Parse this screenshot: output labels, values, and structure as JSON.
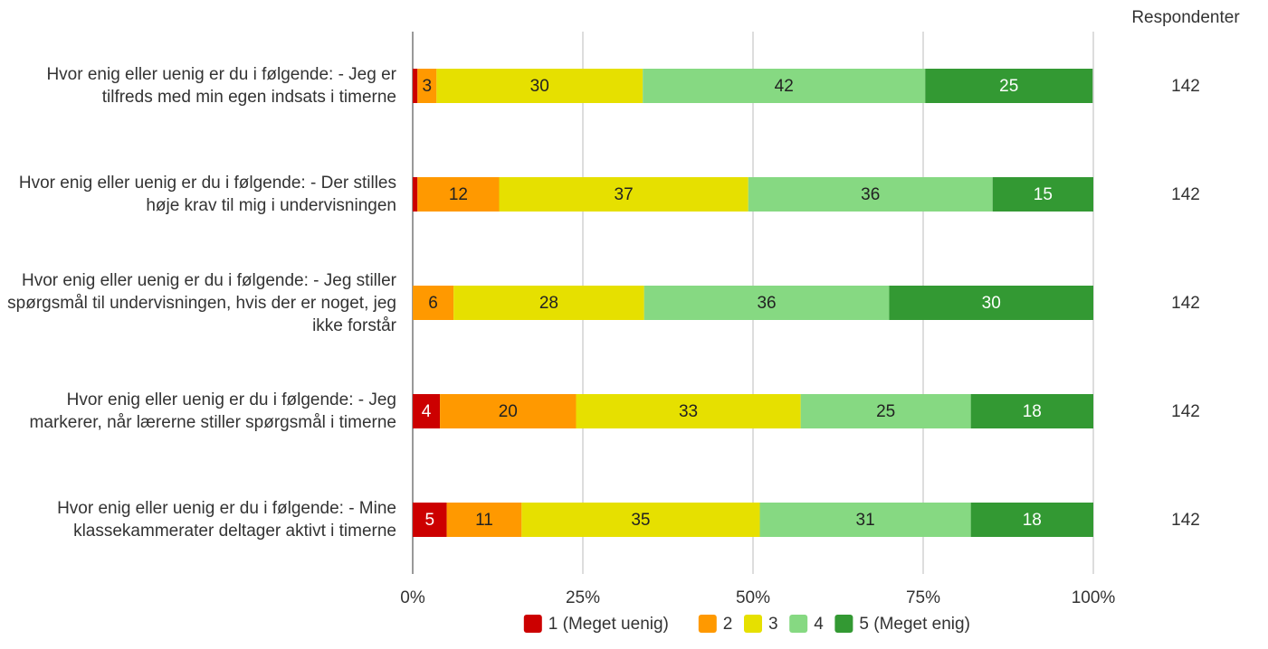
{
  "chart_data": {
    "type": "stacked_bar_horizontal",
    "categories": [
      "Hvor enig eller uenig er du i følgende: - Jeg er tilfreds med min egen indsats i timerne",
      "Hvor enig eller uenig er du i følgende: - Der stilles høje krav til mig i undervisningen",
      "Hvor enig eller uenig er du i følgende: - Jeg stiller spørgsmål til undervisningen, hvis der er noget, jeg ikke forstår",
      "Hvor enig eller uenig er du i følgende: - Jeg markerer, når lærerne stiller spørgsmål i timerne",
      "Hvor enig eller uenig er du i følgende: - Mine klassekammerater deltager aktivt i timerne"
    ],
    "series": [
      {
        "name": "1 (Meget uenig)",
        "color": "#cc0000",
        "label_color": "#ffffff",
        "values": [
          0.7,
          0.7,
          0,
          4,
          5
        ],
        "value_labels": [
          null,
          null,
          null,
          "4",
          "5"
        ]
      },
      {
        "name": "2",
        "color": "#ff9900",
        "label_color": "#222222",
        "values": [
          2.8,
          12.0,
          6,
          20,
          11
        ],
        "value_labels": [
          "3",
          "12",
          "6",
          "20",
          "11"
        ]
      },
      {
        "name": "3",
        "color": "#e6e000",
        "label_color": "#222222",
        "values": [
          30.3,
          36.6,
          28,
          33,
          35
        ],
        "value_labels": [
          "30",
          "37",
          "28",
          "33",
          "35"
        ]
      },
      {
        "name": "4",
        "color": "#86d982",
        "label_color": "#222222",
        "values": [
          41.5,
          35.9,
          36,
          25,
          31
        ],
        "value_labels": [
          "42",
          "36",
          "36",
          "25",
          "31"
        ]
      },
      {
        "name": "5 (Meget enig)",
        "color": "#339933",
        "label_color": "#ffffff",
        "values": [
          24.6,
          14.8,
          30,
          18,
          18
        ],
        "value_labels": [
          "25",
          "15",
          "30",
          "18",
          "18"
        ]
      }
    ],
    "xlim": [
      0,
      100
    ],
    "xticks": [
      {
        "value": 0,
        "label": "0%"
      },
      {
        "value": 25,
        "label": "25%"
      },
      {
        "value": 50,
        "label": "50%"
      },
      {
        "value": 75,
        "label": "75%"
      },
      {
        "value": 100,
        "label": "100%"
      }
    ],
    "grid": true,
    "respondents_title": "Respondenter",
    "respondents": [
      142,
      142,
      142,
      142,
      142
    ]
  }
}
